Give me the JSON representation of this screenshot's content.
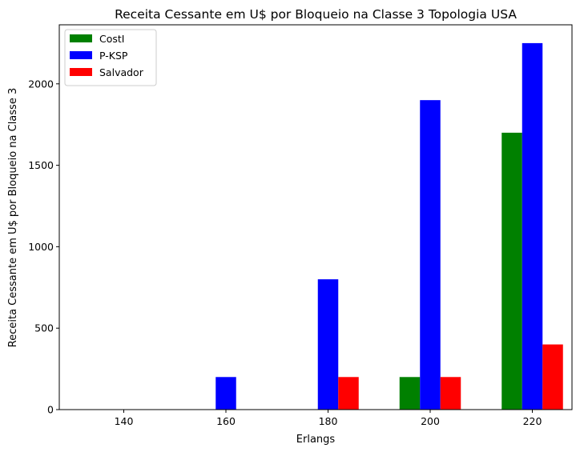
{
  "chart_data": {
    "type": "bar",
    "title": "Receita Cessante em U$ por Bloqueio na Classe 3 Topologia USA",
    "xlabel": "Erlangs",
    "ylabel": "Receita Cessante em U$ por Bloqueio na Classe 3",
    "categories": [
      "140",
      "160",
      "180",
      "200",
      "220"
    ],
    "series": [
      {
        "name": "CostI",
        "color": "#008000",
        "values": [
          0,
          0,
          0,
          200,
          1700
        ]
      },
      {
        "name": "P-KSP",
        "color": "#0000ff",
        "values": [
          0,
          200,
          800,
          1900,
          2250
        ]
      },
      {
        "name": "Salvador",
        "color": "#ff0000",
        "values": [
          0,
          0,
          200,
          200,
          400
        ]
      }
    ],
    "ylim": [
      0,
      2362.5
    ],
    "yticks": [
      0,
      500,
      1000,
      1500,
      2000
    ],
    "grid": false,
    "legend": "upper-left"
  }
}
